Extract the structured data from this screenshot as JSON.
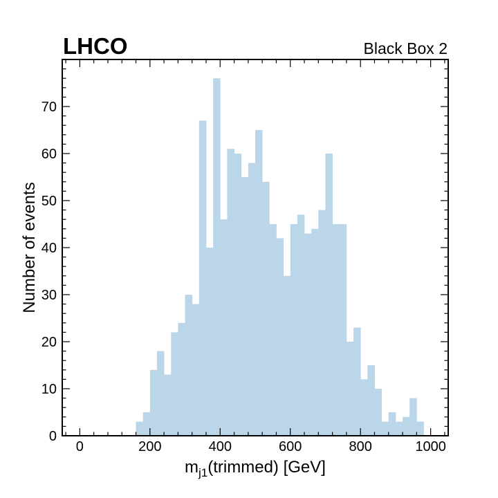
{
  "chart_data": {
    "type": "bar",
    "experiment_label": "LHCO",
    "corner_label": "Black Box 2",
    "xlabel": {
      "main": "m",
      "subscript": "j1",
      "suffix": "(trimmed)  [GeV]"
    },
    "ylabel": "Number of events",
    "xlim": [
      -50,
      1050
    ],
    "ylim": [
      0,
      80
    ],
    "x_ticks": [
      0,
      200,
      400,
      600,
      800,
      1000
    ],
    "y_ticks": [
      0,
      10,
      20,
      30,
      40,
      50,
      60,
      70
    ],
    "bar_color": "#bad6e8",
    "grid": false,
    "bin_width": 20,
    "bin_start": 160,
    "values": [
      3,
      5,
      14,
      18,
      13,
      22,
      24,
      30,
      28,
      67,
      40,
      76,
      46,
      61,
      60,
      55,
      58,
      65,
      54,
      45,
      42,
      34,
      45,
      47,
      43,
      44,
      48,
      60,
      45,
      45,
      20,
      23,
      12,
      15,
      10,
      3,
      5,
      3,
      4,
      8,
      3
    ]
  }
}
